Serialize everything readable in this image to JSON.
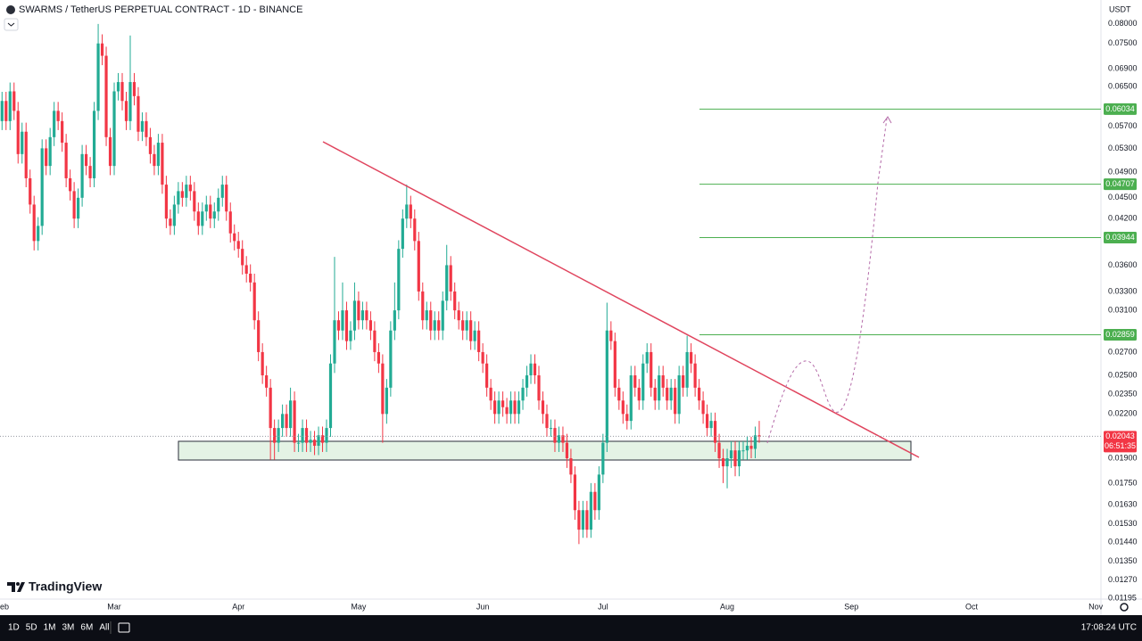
{
  "chart_data": {
    "type": "candlestick",
    "title": "SWARMS / TetherUS PERPETUAL CONTRACT - 1D - BINANCE",
    "quote": "USDT",
    "up_color": "#22ab94",
    "down_color": "#f23645",
    "level_color": "#4caf50",
    "log_scale": true,
    "grid": false,
    "xlim": [
      -0.51,
      274.3
    ],
    "ylim": [
      0.01192,
      0.0866
    ],
    "xticks": [
      {
        "value": 0,
        "label": "Feb"
      },
      {
        "value": 28,
        "label": "Mar"
      },
      {
        "value": 59,
        "label": "Apr"
      },
      {
        "value": 89,
        "label": "May"
      },
      {
        "value": 120,
        "label": "Jun"
      },
      {
        "value": 150,
        "label": "Jul"
      },
      {
        "value": 181,
        "label": "Aug"
      },
      {
        "value": 212,
        "label": "Sep"
      },
      {
        "value": 242,
        "label": "Oct"
      },
      {
        "value": 273,
        "label": "Nov"
      }
    ],
    "yticks": [
      {
        "value": 0.08,
        "label": "0.08000"
      },
      {
        "value": 0.075,
        "label": "0.07500"
      },
      {
        "value": 0.069,
        "label": "0.06900"
      },
      {
        "value": 0.065,
        "label": "0.06500"
      },
      {
        "value": 0.057,
        "label": "0.05700"
      },
      {
        "value": 0.053,
        "label": "0.05300"
      },
      {
        "value": 0.049,
        "label": "0.04900"
      },
      {
        "value": 0.045,
        "label": "0.04500"
      },
      {
        "value": 0.042,
        "label": "0.04200"
      },
      {
        "value": 0.036,
        "label": "0.03600"
      },
      {
        "value": 0.033,
        "label": "0.03300"
      },
      {
        "value": 0.031,
        "label": "0.03100"
      },
      {
        "value": 0.027,
        "label": "0.02700"
      },
      {
        "value": 0.025,
        "label": "0.02500"
      },
      {
        "value": 0.0235,
        "label": "0.02350"
      },
      {
        "value": 0.022,
        "label": "0.02200"
      },
      {
        "value": 0.019,
        "label": "0.01900"
      },
      {
        "value": 0.0175,
        "label": "0.01750"
      },
      {
        "value": 0.0163,
        "label": "0.01630"
      },
      {
        "value": 0.0153,
        "label": "0.01530"
      },
      {
        "value": 0.0144,
        "label": "0.01440"
      },
      {
        "value": 0.0135,
        "label": "0.01350"
      },
      {
        "value": 0.0127,
        "label": "0.01270"
      },
      {
        "value": 0.01195,
        "label": "0.01195"
      }
    ],
    "levels": [
      0.06034,
      0.04707,
      0.03944,
      0.02859
    ],
    "countdown": "06:51:35",
    "open": [
      0.058,
      0.062,
      0.058,
      0.064,
      0.06,
      0.052,
      0.056,
      0.048,
      0.044,
      0.039,
      0.041,
      0.053,
      0.05,
      0.055,
      0.06,
      0.058,
      0.054,
      0.048,
      0.046,
      0.042,
      0.045,
      0.052,
      0.05,
      0.048,
      0.06,
      0.075,
      0.072,
      0.055,
      0.05,
      0.064,
      0.066,
      0.062,
      0.058,
      0.066,
      0.063,
      0.056,
      0.058,
      0.055,
      0.052,
      0.05,
      0.054,
      0.047,
      0.042,
      0.041,
      0.044,
      0.046,
      0.045,
      0.047,
      0.046,
      0.043,
      0.041,
      0.043,
      0.044,
      0.042,
      0.043,
      0.045,
      0.047,
      0.043,
      0.04,
      0.039,
      0.038,
      0.036,
      0.035,
      0.034,
      0.03,
      0.027,
      0.025,
      0.024,
      0.021,
      0.02,
      0.021,
      0.022,
      0.021,
      0.023,
      0.02,
      0.02,
      0.021,
      0.02,
      0.0202,
      0.0198,
      0.0205,
      0.02,
      0.021,
      0.026,
      0.03,
      0.029,
      0.031,
      0.028,
      0.029,
      0.032,
      0.03,
      0.031,
      0.03,
      0.029,
      0.027,
      0.026,
      0.022,
      0.024,
      0.029,
      0.031,
      0.038,
      0.042,
      0.044,
      0.042,
      0.039,
      0.033,
      0.03,
      0.031,
      0.029,
      0.03,
      0.029,
      0.032,
      0.036,
      0.033,
      0.031,
      0.03,
      0.029,
      0.03,
      0.028,
      0.029,
      0.027,
      0.026,
      0.024,
      0.023,
      0.022,
      0.023,
      0.0225,
      0.022,
      0.023,
      0.022,
      0.023,
      0.024,
      0.025,
      0.026,
      0.025,
      0.023,
      0.022,
      0.021,
      0.021,
      0.02,
      0.0205,
      0.02,
      0.019,
      0.018,
      0.016,
      0.015,
      0.016,
      0.015,
      0.017,
      0.016,
      0.018,
      0.02,
      0.029,
      0.028,
      0.024,
      0.023,
      0.022,
      0.0215,
      0.025,
      0.024,
      0.023,
      0.026,
      0.027,
      0.024,
      0.023,
      0.025,
      0.024,
      0.023,
      0.024,
      0.022,
      0.025,
      0.024,
      0.027,
      0.026,
      0.024,
      0.023,
      0.022,
      0.021,
      0.0215,
      0.02,
      0.019,
      0.0185,
      0.019,
      0.0195,
      0.0185,
      0.0195,
      0.0195,
      0.0198,
      0.0196,
      0.0205
    ],
    "high": [
      0.0639,
      0.0639,
      0.0659,
      0.0659,
      0.0618,
      0.0577,
      0.0577,
      0.0494,
      0.0453,
      0.0422,
      0.0546,
      0.0546,
      0.0567,
      0.0618,
      0.0618,
      0.0597,
      0.0556,
      0.0494,
      0.0474,
      0.0464,
      0.0536,
      0.0536,
      0.0515,
      0.0618,
      0.08,
      0.0773,
      0.0742,
      0.0567,
      0.0659,
      0.068,
      0.068,
      0.0639,
      0.077,
      0.068,
      0.0649,
      0.0597,
      0.0597,
      0.0567,
      0.0536,
      0.0556,
      0.0556,
      0.0484,
      0.0433,
      0.0453,
      0.0474,
      0.0474,
      0.0484,
      0.0484,
      0.0474,
      0.0443,
      0.0443,
      0.0453,
      0.0453,
      0.0443,
      0.0464,
      0.0484,
      0.0484,
      0.0443,
      0.0412,
      0.0402,
      0.0391,
      0.0371,
      0.0361,
      0.035,
      0.0309,
      0.0278,
      0.0258,
      0.0247,
      0.0216,
      0.0216,
      0.0227,
      0.0227,
      0.024,
      0.0237,
      0.0206,
      0.0216,
      0.0216,
      0.0208,
      0.0208,
      0.0211,
      0.0211,
      0.0216,
      0.0268,
      0.037,
      0.0309,
      0.034,
      0.0319,
      0.0299,
      0.034,
      0.033,
      0.0319,
      0.0319,
      0.0309,
      0.0299,
      0.0278,
      0.0268,
      0.0247,
      0.0299,
      0.034,
      0.0391,
      0.0433,
      0.047,
      0.0453,
      0.0433,
      0.0402,
      0.034,
      0.0319,
      0.0319,
      0.0309,
      0.0309,
      0.033,
      0.0385,
      0.0371,
      0.034,
      0.0319,
      0.0309,
      0.0309,
      0.0309,
      0.0299,
      0.0299,
      0.0278,
      0.0268,
      0.0247,
      0.0237,
      0.0237,
      0.0237,
      0.0232,
      0.0237,
      0.0237,
      0.0237,
      0.0247,
      0.0258,
      0.0268,
      0.0268,
      0.0258,
      0.0237,
      0.0227,
      0.0216,
      0.0216,
      0.0211,
      0.0211,
      0.0206,
      0.0196,
      0.0185,
      0.0165,
      0.0165,
      0.0165,
      0.0175,
      0.0175,
      0.0185,
      0.0206,
      0.0318,
      0.0299,
      0.0288,
      0.0247,
      0.0237,
      0.0227,
      0.0258,
      0.0258,
      0.0247,
      0.0268,
      0.0278,
      0.0278,
      0.0247,
      0.0258,
      0.0258,
      0.0247,
      0.0247,
      0.0247,
      0.0258,
      0.0258,
      0.0285,
      0.0278,
      0.0268,
      0.0247,
      0.0237,
      0.0227,
      0.0221,
      0.0221,
      0.0206,
      0.0196,
      0.0196,
      0.0201,
      0.0201,
      0.0201,
      0.0201,
      0.0204,
      0.0204,
      0.0211,
      0.0215
    ],
    "low": [
      0.0563,
      0.0563,
      0.0563,
      0.0582,
      0.0504,
      0.0504,
      0.0466,
      0.0427,
      0.0378,
      0.0378,
      0.0398,
      0.0485,
      0.0485,
      0.0534,
      0.0563,
      0.0524,
      0.0466,
      0.0446,
      0.0407,
      0.0407,
      0.0437,
      0.0485,
      0.0466,
      0.0466,
      0.0582,
      0.0698,
      0.0534,
      0.0485,
      0.0485,
      0.0621,
      0.0601,
      0.0563,
      0.0563,
      0.0611,
      0.0543,
      0.0543,
      0.0534,
      0.0504,
      0.0485,
      0.0485,
      0.0456,
      0.0407,
      0.0398,
      0.0398,
      0.0427,
      0.0437,
      0.0437,
      0.0446,
      0.0417,
      0.0398,
      0.0398,
      0.0417,
      0.0407,
      0.0407,
      0.0417,
      0.0437,
      0.0417,
      0.0388,
      0.0378,
      0.0369,
      0.0349,
      0.034,
      0.033,
      0.0291,
      0.0262,
      0.0243,
      0.0233,
      0.0189,
      0.0189,
      0.0194,
      0.0204,
      0.0204,
      0.0204,
      0.0194,
      0.0194,
      0.0194,
      0.0194,
      0.0194,
      0.0192,
      0.0192,
      0.0194,
      0.0194,
      0.0204,
      0.0252,
      0.0281,
      0.0281,
      0.0272,
      0.0272,
      0.0281,
      0.0291,
      0.0291,
      0.0291,
      0.0281,
      0.0262,
      0.0252,
      0.02,
      0.0213,
      0.0233,
      0.0281,
      0.0301,
      0.0369,
      0.0407,
      0.0407,
      0.0378,
      0.032,
      0.0291,
      0.0291,
      0.0281,
      0.0281,
      0.0281,
      0.0281,
      0.031,
      0.032,
      0.0301,
      0.0291,
      0.0281,
      0.0281,
      0.0272,
      0.0272,
      0.0262,
      0.0252,
      0.0233,
      0.0223,
      0.0213,
      0.0213,
      0.0218,
      0.0213,
      0.0213,
      0.0213,
      0.0213,
      0.0223,
      0.0233,
      0.0243,
      0.0243,
      0.0223,
      0.0213,
      0.0204,
      0.0204,
      0.0194,
      0.0194,
      0.0194,
      0.0184,
      0.0175,
      0.0155,
      0.0143,
      0.0146,
      0.0146,
      0.0146,
      0.0155,
      0.0155,
      0.0175,
      0.0194,
      0.0272,
      0.0233,
      0.0223,
      0.0213,
      0.0209,
      0.0209,
      0.0233,
      0.0223,
      0.0223,
      0.0252,
      0.0233,
      0.0223,
      0.0223,
      0.0233,
      0.0223,
      0.0223,
      0.0213,
      0.0213,
      0.0233,
      0.0233,
      0.0252,
      0.0233,
      0.0223,
      0.0213,
      0.0204,
      0.0204,
      0.0194,
      0.0184,
      0.0175,
      0.0172,
      0.0184,
      0.0179,
      0.0179,
      0.0189,
      0.0189,
      0.019,
      0.019,
      0.02
    ],
    "close": [
      0.062,
      0.058,
      0.064,
      0.06,
      0.052,
      0.056,
      0.048,
      0.044,
      0.039,
      0.041,
      0.053,
      0.05,
      0.055,
      0.06,
      0.058,
      0.054,
      0.048,
      0.046,
      0.042,
      0.045,
      0.052,
      0.05,
      0.048,
      0.06,
      0.075,
      0.072,
      0.055,
      0.05,
      0.064,
      0.066,
      0.062,
      0.058,
      0.066,
      0.063,
      0.056,
      0.058,
      0.055,
      0.052,
      0.05,
      0.054,
      0.047,
      0.042,
      0.041,
      0.044,
      0.046,
      0.045,
      0.047,
      0.046,
      0.043,
      0.041,
      0.043,
      0.044,
      0.042,
      0.043,
      0.045,
      0.047,
      0.043,
      0.04,
      0.039,
      0.038,
      0.036,
      0.035,
      0.034,
      0.03,
      0.027,
      0.025,
      0.024,
      0.021,
      0.02,
      0.021,
      0.022,
      0.021,
      0.023,
      0.02,
      0.02,
      0.021,
      0.02,
      0.0202,
      0.0198,
      0.0205,
      0.02,
      0.021,
      0.026,
      0.03,
      0.029,
      0.031,
      0.028,
      0.029,
      0.032,
      0.03,
      0.031,
      0.03,
      0.029,
      0.027,
      0.026,
      0.022,
      0.024,
      0.029,
      0.031,
      0.038,
      0.042,
      0.044,
      0.042,
      0.039,
      0.033,
      0.03,
      0.031,
      0.029,
      0.03,
      0.029,
      0.032,
      0.036,
      0.033,
      0.031,
      0.03,
      0.029,
      0.03,
      0.028,
      0.029,
      0.027,
      0.026,
      0.024,
      0.023,
      0.022,
      0.023,
      0.0225,
      0.022,
      0.023,
      0.022,
      0.023,
      0.024,
      0.025,
      0.026,
      0.025,
      0.023,
      0.022,
      0.021,
      0.021,
      0.02,
      0.0205,
      0.02,
      0.019,
      0.018,
      0.016,
      0.015,
      0.016,
      0.015,
      0.017,
      0.016,
      0.018,
      0.02,
      0.029,
      0.028,
      0.024,
      0.023,
      0.022,
      0.0215,
      0.025,
      0.024,
      0.023,
      0.026,
      0.027,
      0.024,
      0.023,
      0.025,
      0.024,
      0.023,
      0.024,
      0.022,
      0.025,
      0.024,
      0.027,
      0.026,
      0.024,
      0.023,
      0.022,
      0.021,
      0.0215,
      0.02,
      0.019,
      0.0185,
      0.019,
      0.0195,
      0.0185,
      0.0195,
      0.0195,
      0.0198,
      0.0196,
      0.0205,
      0.02043
    ]
  },
  "toolbar": {
    "ranges": [
      "1D",
      "5D",
      "1M",
      "3M",
      "6M",
      "All"
    ],
    "time": "17:08:24 UTC"
  },
  "logo": "TradingView"
}
